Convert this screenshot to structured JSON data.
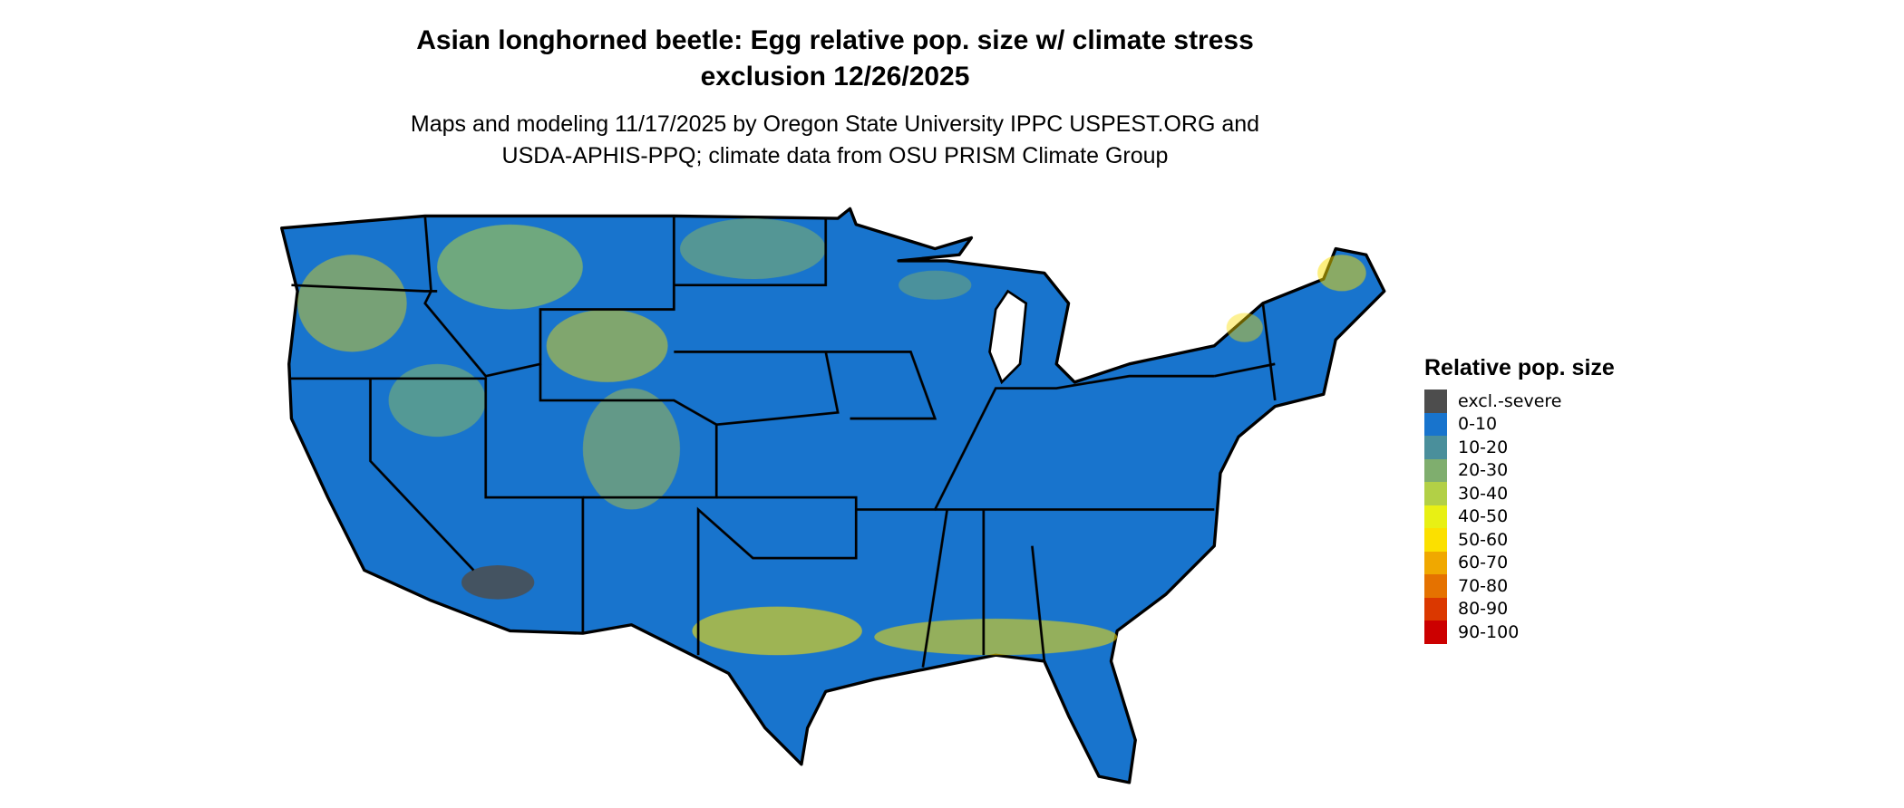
{
  "title_line1": "Asian longhorned beetle: Egg relative pop. size w/ climate stress",
  "title_line2": "exclusion 12/26/2025",
  "subtitle_line1": "Maps and modeling 11/17/2025 by Oregon State University IPPC USPEST.ORG and",
  "subtitle_line2": "USDA-APHIS-PPQ; climate data from OSU PRISM Climate Group",
  "map": {
    "region": "Contiguous United States",
    "dominant_class": "0-10",
    "high_classes_regions": [
      "Pacific Northwest",
      "Intermountain West",
      "Rocky Mountains",
      "Gulf Coast",
      "Northern Maine"
    ],
    "excluded_region": "Southern Arizona"
  },
  "legend": {
    "title": "Relative pop. size",
    "items": [
      {
        "label": "excl.-severe",
        "color": "#4d4d4d"
      },
      {
        "label": "0-10",
        "color": "#1874cd"
      },
      {
        "label": "10-20",
        "color": "#4a8f9b"
      },
      {
        "label": "20-30",
        "color": "#7fae6e"
      },
      {
        "label": "30-40",
        "color": "#b2d046"
      },
      {
        "label": "40-50",
        "color": "#e8f014"
      },
      {
        "label": "50-60",
        "color": "#fbe000"
      },
      {
        "label": "60-70",
        "color": "#f0a800"
      },
      {
        "label": "70-80",
        "color": "#e57200"
      },
      {
        "label": "80-90",
        "color": "#db3800"
      },
      {
        "label": "90-100",
        "color": "#cc0000"
      }
    ]
  }
}
